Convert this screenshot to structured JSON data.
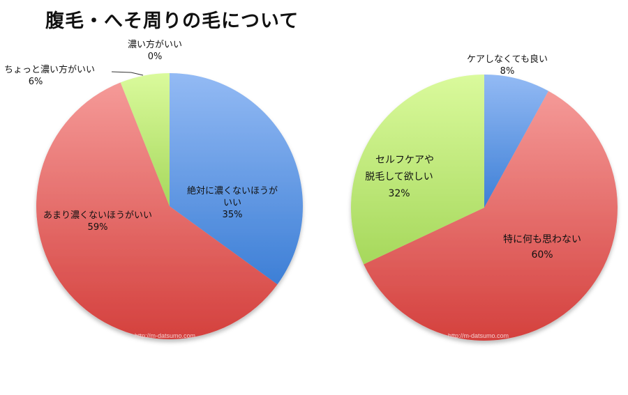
{
  "title": "腹毛・へそ周りの毛について",
  "watermark": "http://m-datsumo.com",
  "chart_data": [
    {
      "type": "pie",
      "title": "腹毛・へそ周りの毛について",
      "categories": [
        "絶対に濃くないほうがいい",
        "あまり濃くないほうがいい",
        "ちょっと濃い方がいい",
        "濃い方がいい"
      ],
      "values": [
        35,
        59,
        6,
        0
      ],
      "colors": [
        "#6a9ee6",
        "#e0605e",
        "#c6e87e",
        "#c6e87e"
      ],
      "labels": {
        "slice0": {
          "line1": "絶対に濃くないほうが",
          "line2": "いい",
          "pct": "35%"
        },
        "slice1": {
          "line1": "あまり濃くないほうがいい",
          "pct": "59%"
        },
        "slice2": {
          "line1": "ちょっと濃い方がいい",
          "pct": "6%"
        },
        "slice3": {
          "line1": "濃い方がいい",
          "pct": "0%"
        }
      }
    },
    {
      "type": "pie",
      "categories": [
        "ケアしなくても良い",
        "特に何も思わない",
        "セルフケアや脱毛して欲しい"
      ],
      "values": [
        8,
        60,
        32
      ],
      "colors": [
        "#6a9ee6",
        "#e0605e",
        "#b7e070"
      ],
      "labels": {
        "slice0": {
          "line1": "ケアしなくても良い",
          "pct": "8%"
        },
        "slice1": {
          "line1": "特に何も思わない",
          "pct": "60%"
        },
        "slice2": {
          "line1": "セルフケアや",
          "line2": "脱毛して欲しい",
          "pct": "32%"
        }
      }
    }
  ]
}
